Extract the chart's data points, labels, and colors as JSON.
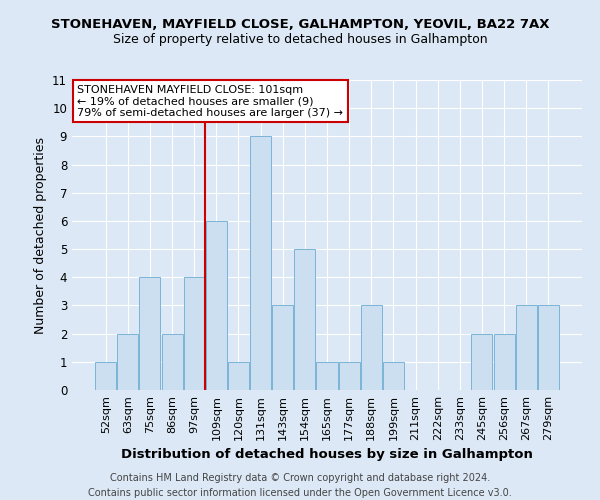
{
  "title": "STONEHAVEN, MAYFIELD CLOSE, GALHAMPTON, YEOVIL, BA22 7AX",
  "subtitle": "Size of property relative to detached houses in Galhampton",
  "xlabel": "Distribution of detached houses by size in Galhampton",
  "ylabel": "Number of detached properties",
  "footer_line1": "Contains HM Land Registry data © Crown copyright and database right 2024.",
  "footer_line2": "Contains public sector information licensed under the Open Government Licence v3.0.",
  "categories": [
    "52sqm",
    "63sqm",
    "75sqm",
    "86sqm",
    "97sqm",
    "109sqm",
    "120sqm",
    "131sqm",
    "143sqm",
    "154sqm",
    "165sqm",
    "177sqm",
    "188sqm",
    "199sqm",
    "211sqm",
    "222sqm",
    "233sqm",
    "245sqm",
    "256sqm",
    "267sqm",
    "279sqm"
  ],
  "values": [
    1,
    2,
    4,
    2,
    4,
    6,
    1,
    9,
    3,
    5,
    1,
    1,
    3,
    1,
    0,
    0,
    0,
    2,
    2,
    3,
    3
  ],
  "bar_color": "#ccdff0",
  "bar_edge_color": "#7ab4d8",
  "vline_x": 4.5,
  "vline_color": "#cc0000",
  "annotation_text": "STONEHAVEN MAYFIELD CLOSE: 101sqm\n← 19% of detached houses are smaller (9)\n79% of semi-detached houses are larger (37) →",
  "annotation_box_color": "#ffffff",
  "annotation_box_edge": "#cc0000",
  "ylim": [
    0,
    11
  ],
  "yticks": [
    0,
    1,
    2,
    3,
    4,
    5,
    6,
    7,
    8,
    9,
    10,
    11
  ],
  "bg_color": "#dce8f5",
  "plot_bg_color": "#dce8f5",
  "grid_color": "#ffffff",
  "title_fontsize": 9.5,
  "subtitle_fontsize": 9,
  "label_fontsize": 9,
  "tick_fontsize": 8,
  "footer_fontsize": 7
}
